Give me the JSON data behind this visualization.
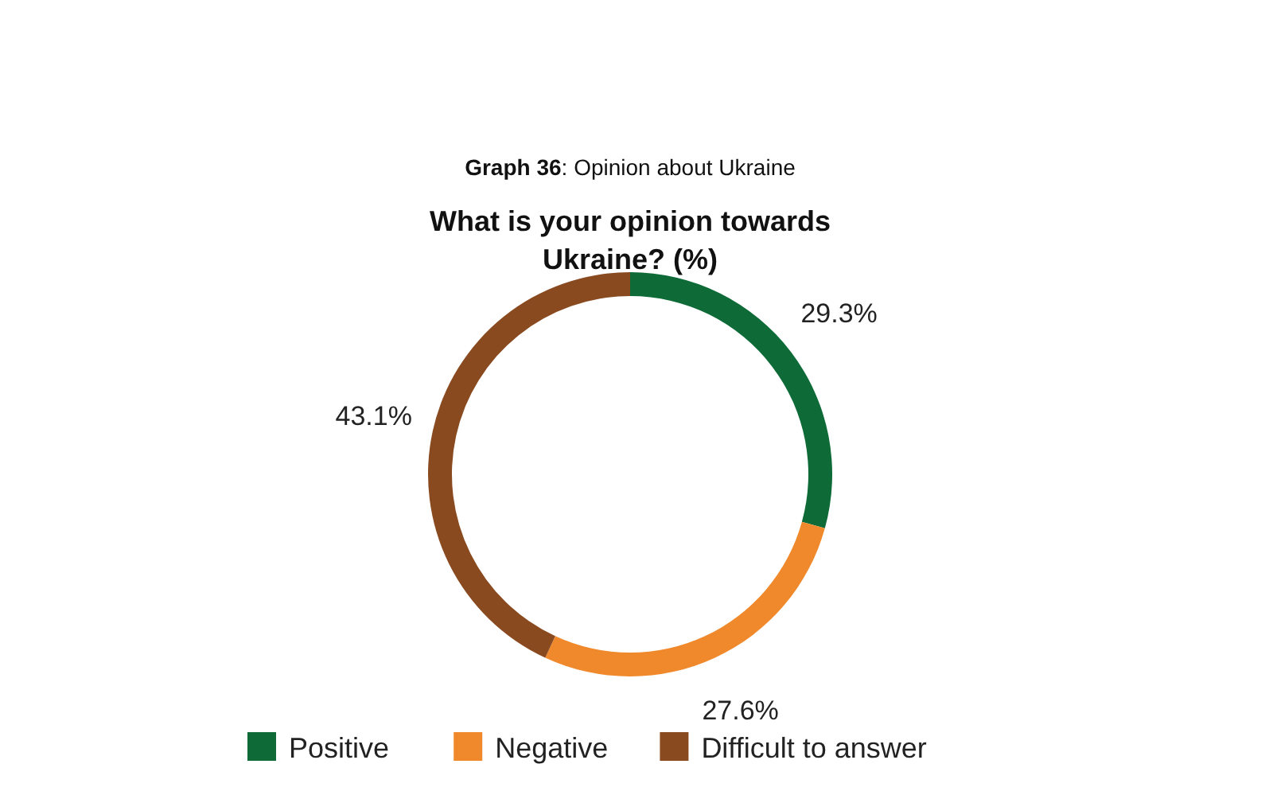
{
  "chart_data": {
    "type": "donut",
    "title": "Graph 36: Opinion about Ukraine",
    "subtitle": "What is your opinion towards Ukraine? (%)",
    "categories": [
      "Positive",
      "Negative",
      "Difficult to answer"
    ],
    "values": [
      29.3,
      27.6,
      43.1
    ],
    "colors": [
      "#0e6b38",
      "#f0892c",
      "#8a4a20"
    ],
    "value_labels": [
      "29.3%",
      "27.6%",
      "43.1%"
    ],
    "legend": "bottom"
  }
}
